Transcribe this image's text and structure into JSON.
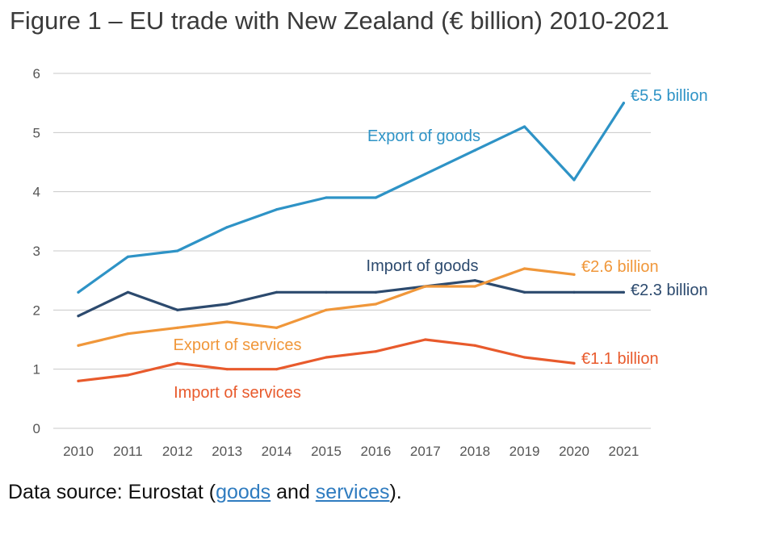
{
  "title": "Figure 1 – EU trade with New Zealand (€ billion) 2010-2021",
  "source": {
    "prefix": "Data source: Eurostat (",
    "link1": "goods",
    "middle": " and ",
    "link2": "services",
    "suffix": ")."
  },
  "chart_data": {
    "type": "line",
    "x": [
      "2010",
      "2011",
      "2012",
      "2013",
      "2014",
      "2015",
      "2016",
      "2017",
      "2018",
      "2019",
      "2020",
      "2021"
    ],
    "ylim": [
      0,
      6
    ],
    "yticks": [
      0,
      1,
      2,
      3,
      4,
      5,
      6
    ],
    "grid": true,
    "legend": "inline labels",
    "series": [
      {
        "name": "Export of goods",
        "color": "#2e93c6",
        "values": [
          2.3,
          2.9,
          3.0,
          3.4,
          3.7,
          3.9,
          3.9,
          4.3,
          4.7,
          5.1,
          4.2,
          5.5
        ],
        "end_label": "€5.5 billion"
      },
      {
        "name": "Import of goods",
        "color": "#2c4a6e",
        "values": [
          1.9,
          2.3,
          2.0,
          2.1,
          2.3,
          2.3,
          2.3,
          2.4,
          2.5,
          2.3,
          2.3,
          2.3
        ],
        "end_label": "€2.3 billion"
      },
      {
        "name": "Export of services",
        "color": "#f0973a",
        "values": [
          1.4,
          1.6,
          1.7,
          1.8,
          1.7,
          2.0,
          2.1,
          2.4,
          2.4,
          2.7,
          2.6,
          null
        ],
        "end_label": "€2.6 billion"
      },
      {
        "name": "Import of services",
        "color": "#e85a2c",
        "values": [
          0.8,
          0.9,
          1.1,
          1.0,
          1.0,
          1.2,
          1.3,
          1.5,
          1.4,
          1.2,
          1.1,
          null
        ],
        "end_label": "€1.1 billion"
      }
    ]
  }
}
